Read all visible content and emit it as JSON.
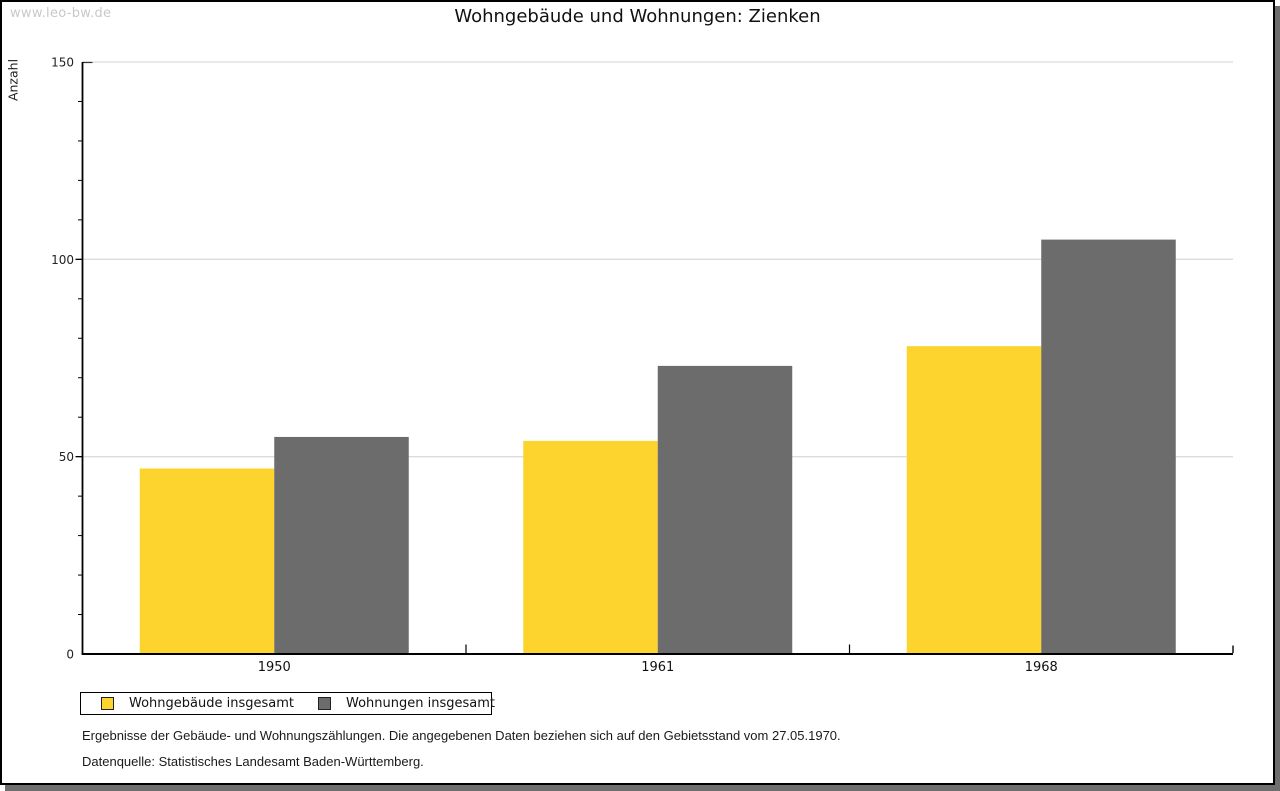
{
  "watermark": {
    "text": "www.leo-bw.de"
  },
  "chart_data": {
    "type": "bar",
    "title": "Wohngebäude und Wohnungen: Zienken",
    "categories": [
      "1950",
      "1961",
      "1968"
    ],
    "series": [
      {
        "name": "Wohngebäude insgesamt",
        "color": "#fdd32e",
        "values": [
          47,
          54,
          78
        ]
      },
      {
        "name": "Wohnungen insgesamt",
        "color": "#6c6c6c",
        "values": [
          55,
          73,
          105
        ]
      }
    ],
    "xlabel": "",
    "ylabel": "Anzahl",
    "ylim": [
      0,
      150
    ],
    "yticks": [
      0,
      50,
      100,
      150
    ],
    "minor_tick_step": 10,
    "grid": true,
    "gridline_color": "#dcdcdc",
    "axis_color": "#000000",
    "tick_label_color": "#222222",
    "legend_position": "bottom-left"
  },
  "footer": {
    "line1": "Ergebnisse der Gebäude- und Wohnungszählungen. Die angegebenen Daten beziehen sich auf den Gebietsstand vom 27.05.1970.",
    "line2": "Datenquelle: Statistisches Landesamt Baden-Württemberg."
  }
}
